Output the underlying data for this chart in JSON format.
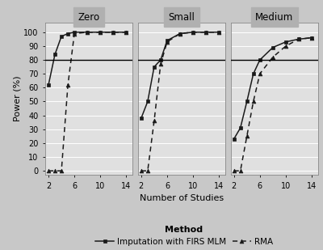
{
  "panels": [
    "Zero",
    "Small",
    "Medium"
  ],
  "x_values": [
    2,
    3,
    4,
    5,
    6,
    8,
    10,
    12,
    14
  ],
  "firs_mlm": {
    "Zero": [
      62,
      84,
      97,
      99,
      100,
      100,
      100,
      100,
      100
    ],
    "Small": [
      38,
      50,
      75,
      80,
      94,
      99,
      100,
      100,
      100
    ],
    "Medium": [
      23,
      31,
      50,
      70,
      80,
      89,
      93,
      95,
      96
    ]
  },
  "rma": {
    "Zero": [
      0,
      0,
      0,
      62,
      99,
      100,
      100,
      100,
      100
    ],
    "Small": [
      0,
      0,
      36,
      77,
      93,
      99,
      100,
      100,
      100
    ],
    "Medium": [
      0,
      0,
      25,
      50,
      70,
      82,
      90,
      95,
      96
    ]
  },
  "reference_line": 80,
  "xlabel": "Number of Studies",
  "ylabel": "Power (%)",
  "xticks": [
    2,
    6,
    10,
    14
  ],
  "yticks": [
    0,
    10,
    20,
    30,
    40,
    50,
    60,
    70,
    80,
    90,
    100
  ],
  "ylim": [
    -3,
    107
  ],
  "xlim": [
    1.5,
    15
  ],
  "outer_bg": "#c8c8c8",
  "plot_bg": "#e0e0e0",
  "strip_bg": "#b0b0b0",
  "legend_label_firs": "Imputation with FIRS MLM",
  "legend_label_rma": "RMA",
  "legend_title": "Method",
  "line_color": "#1a1a1a",
  "ref_line_color": "#000000",
  "strip_fontsize": 8.5,
  "tick_fontsize": 7,
  "label_fontsize": 8,
  "legend_fontsize": 7.5,
  "legend_title_fontsize": 8
}
